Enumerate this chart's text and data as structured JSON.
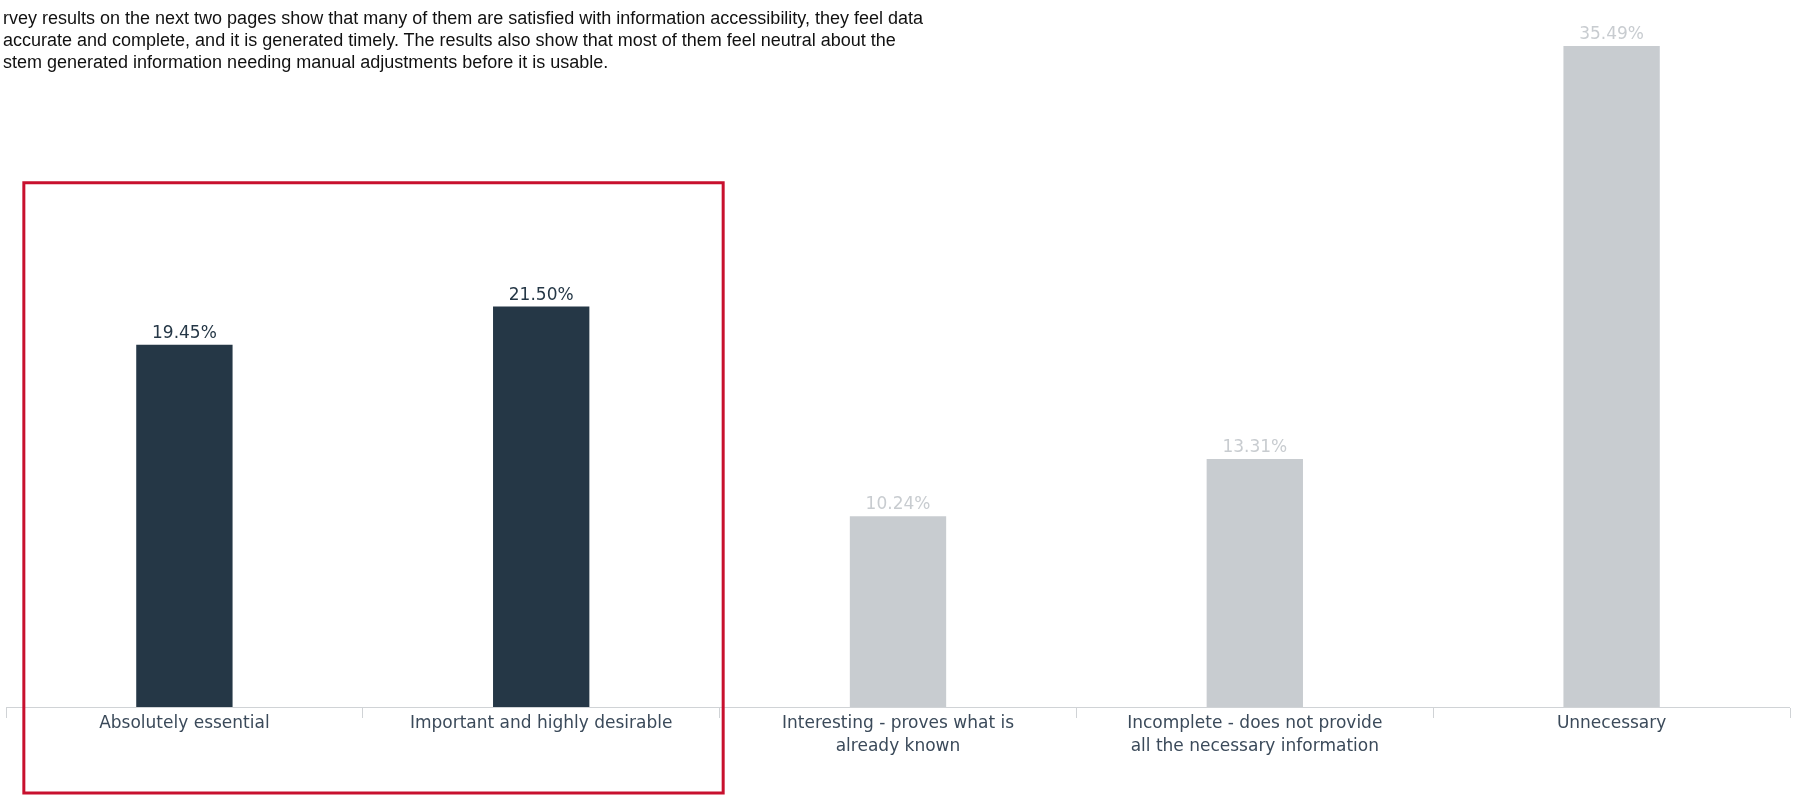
{
  "chart_data": {
    "type": "bar",
    "annotations": [
      "rvey results on the next two pages show that many of them are satisfied with information accessibility, they feel data",
      "accurate and complete, and it is generated timely. The results also show that most of them feel neutral about the",
      "stem generated information needing manual adjustments before it is usable."
    ],
    "categories": [
      "Absolutely essential",
      "Important and highly desirable",
      "Interesting - proves what is already known",
      "Incomplete - does not provide all the necessary information",
      "Unnecessary"
    ],
    "values": [
      19.45,
      21.5,
      10.24,
      13.31,
      35.49
    ],
    "colors": [
      "#253746",
      "#253746",
      "#c8ccd0",
      "#c8ccd0",
      "#c8ccd0"
    ],
    "value_labels": [
      "19.45%",
      "21.50%",
      "10.24%",
      "13.31%",
      "35.49%"
    ],
    "grid": false
  }
}
